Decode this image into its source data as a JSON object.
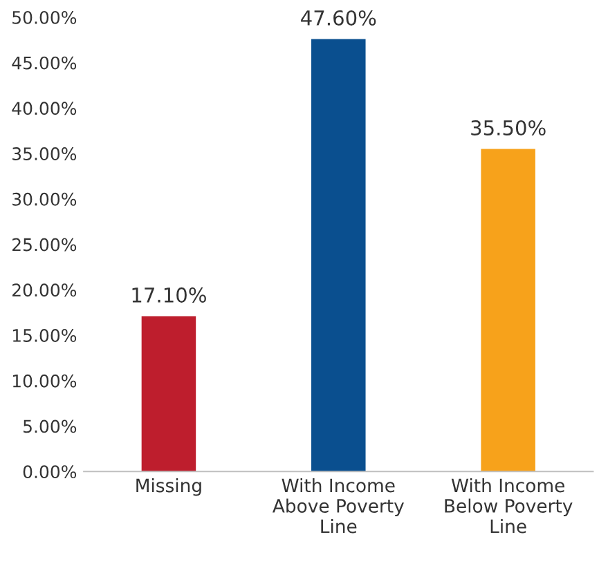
{
  "chart_data": {
    "type": "bar",
    "categories": [
      "Missing",
      "With Income\nAbove Poverty\nLine",
      "With Income\nBelow Poverty\nLine"
    ],
    "values": [
      17.1,
      47.6,
      35.5
    ],
    "colors": [
      "#be1e2d",
      "#0a4f8f",
      "#f7a21b"
    ],
    "value_labels": [
      "17.10%",
      "47.60%",
      "35.50%"
    ],
    "ylim": [
      0,
      50
    ],
    "yticks": [
      {
        "value": 0,
        "label": "0.00%"
      },
      {
        "value": 5,
        "label": "5.00%"
      },
      {
        "value": 10,
        "label": "10.00%"
      },
      {
        "value": 15,
        "label": "15.00%"
      },
      {
        "value": 20,
        "label": "20.00%"
      },
      {
        "value": 25,
        "label": "25.00%"
      },
      {
        "value": 30,
        "label": "30.00%"
      },
      {
        "value": 35,
        "label": "35.00%"
      },
      {
        "value": 40,
        "label": "40.00%"
      },
      {
        "value": 45,
        "label": "45.00%"
      },
      {
        "value": 50,
        "label": "50.00%"
      }
    ],
    "grid": false,
    "legend": false
  }
}
